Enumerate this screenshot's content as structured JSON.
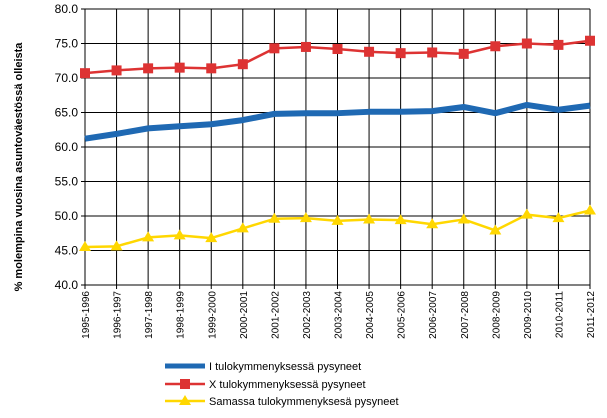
{
  "chart_data": {
    "type": "line",
    "title": "",
    "xlabel": "",
    "ylabel": "% molempina vuosina asuntoväestössä  olleista",
    "ylim": [
      40,
      80
    ],
    "yticks": [
      "40.0",
      "45.0",
      "50.0",
      "55.0",
      "60.0",
      "65.0",
      "70.0",
      "75.0",
      "80.0"
    ],
    "grid": true,
    "legend_position": "bottom",
    "categories": [
      "1995-1996",
      "1996-1997",
      "1997-1998",
      "1998-1999",
      "1999-2000",
      "2000-2001",
      "2001-2002",
      "2002-2003",
      "2003-2004",
      "2004-2005",
      "2005-2006",
      "2006-2007",
      "2007-2008",
      "2008-2009",
      "2009-2010",
      "2010-2011",
      "2011-2012"
    ],
    "series": [
      {
        "name": "I tulokymmenyksessä pysyneet",
        "color": "#1f69b3",
        "marker": "none",
        "values": [
          61.2,
          61.9,
          62.7,
          63.0,
          63.3,
          63.9,
          64.8,
          64.9,
          64.9,
          65.1,
          65.1,
          65.2,
          65.8,
          64.9,
          66.1,
          65.4,
          66.0
        ]
      },
      {
        "name": "X tulokymmenyksessä pysyneet",
        "color": "#dd3333",
        "marker": "square",
        "values": [
          70.7,
          71.1,
          71.4,
          71.5,
          71.4,
          72.0,
          74.3,
          74.5,
          74.2,
          73.8,
          73.6,
          73.7,
          73.5,
          74.6,
          75.0,
          74.8,
          75.4
        ]
      },
      {
        "name": "Samassa tulokymmenyksesä pysyneet",
        "color": "#ffd700",
        "marker": "triangle",
        "values": [
          45.5,
          45.6,
          46.9,
          47.2,
          46.8,
          48.2,
          49.6,
          49.7,
          49.3,
          49.5,
          49.4,
          48.8,
          49.5,
          47.9,
          50.2,
          49.7,
          50.8
        ]
      }
    ]
  }
}
